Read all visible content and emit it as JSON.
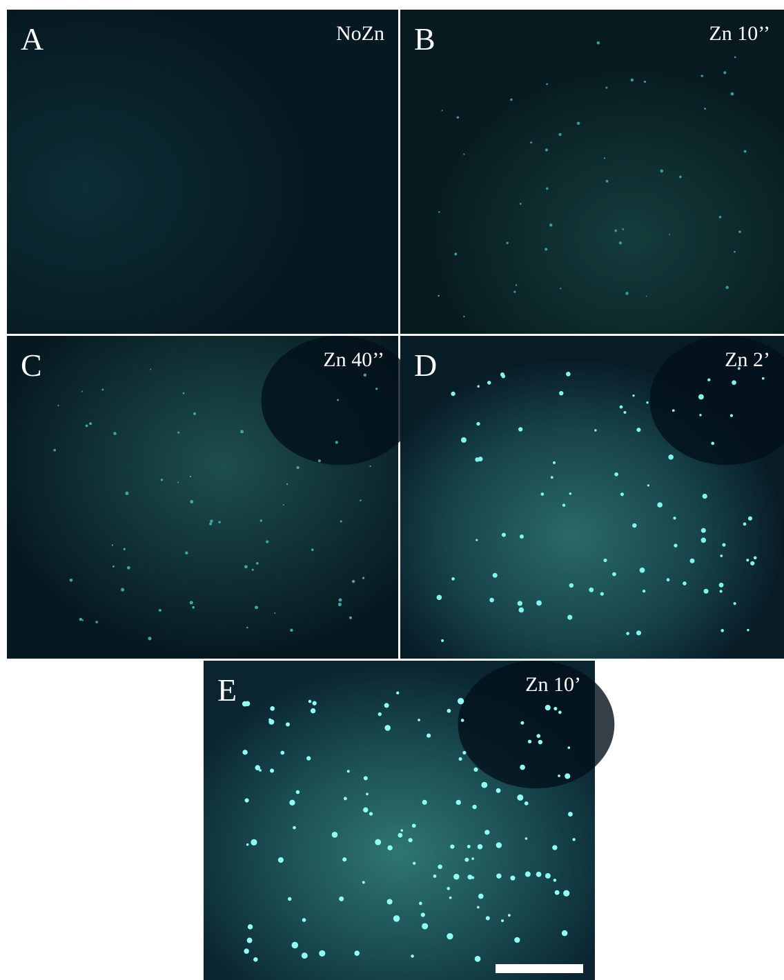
{
  "panels": [
    {
      "letter": "A",
      "label": "NoZn"
    },
    {
      "letter": "B",
      "label": "Zn 10’’"
    },
    {
      "letter": "C",
      "label": "Zn 40’’"
    },
    {
      "letter": "D",
      "label": "Zn 2’"
    },
    {
      "letter": "E",
      "label": "Zn 10’"
    }
  ]
}
